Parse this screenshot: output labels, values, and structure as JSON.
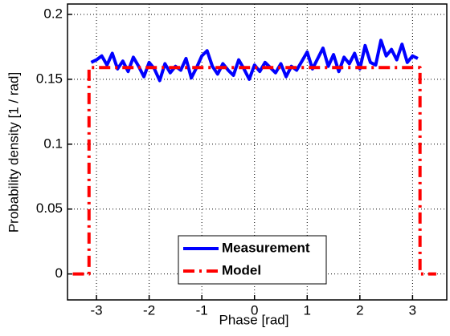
{
  "chart_data": {
    "type": "line",
    "xlabel": "Phase  [rad]",
    "ylabel": "Probability density  [1 / rad]",
    "xlim": [
      -3.55,
      3.65
    ],
    "ylim": [
      -0.02,
      0.208
    ],
    "xticks": [
      -3,
      -2,
      -1,
      0,
      1,
      2,
      3
    ],
    "yticks": [
      0,
      0.05,
      0.1,
      0.15,
      0.2
    ],
    "grid": true,
    "legend": "bottom",
    "series": [
      {
        "name": "Measurement",
        "color": "#0000ff",
        "linestyle": "solid",
        "x": [
          -3.1,
          -3.0,
          -2.9,
          -2.8,
          -2.7,
          -2.6,
          -2.5,
          -2.4,
          -2.3,
          -2.2,
          -2.1,
          -2.0,
          -1.9,
          -1.8,
          -1.7,
          -1.6,
          -1.5,
          -1.4,
          -1.3,
          -1.2,
          -1.1,
          -1.0,
          -0.9,
          -0.8,
          -0.7,
          -0.6,
          -0.5,
          -0.4,
          -0.3,
          -0.2,
          -0.1,
          0,
          0.1,
          0.2,
          0.3,
          0.4,
          0.5,
          0.6,
          0.7,
          0.8,
          0.9,
          1.0,
          1.1,
          1.2,
          1.3,
          1.4,
          1.5,
          1.6,
          1.7,
          1.8,
          1.9,
          2.0,
          2.1,
          2.2,
          2.3,
          2.4,
          2.5,
          2.6,
          2.7,
          2.8,
          2.9,
          3.0,
          3.1
        ],
        "values": [
          0.163,
          0.165,
          0.168,
          0.161,
          0.17,
          0.158,
          0.164,
          0.156,
          0.167,
          0.16,
          0.152,
          0.163,
          0.158,
          0.149,
          0.162,
          0.155,
          0.16,
          0.157,
          0.166,
          0.151,
          0.159,
          0.168,
          0.172,
          0.16,
          0.154,
          0.162,
          0.157,
          0.153,
          0.165,
          0.158,
          0.15,
          0.161,
          0.156,
          0.163,
          0.159,
          0.155,
          0.162,
          0.152,
          0.16,
          0.157,
          0.164,
          0.171,
          0.158,
          0.166,
          0.174,
          0.16,
          0.169,
          0.156,
          0.167,
          0.162,
          0.17,
          0.158,
          0.176,
          0.163,
          0.161,
          0.18,
          0.168,
          0.173,
          0.165,
          0.177,
          0.163,
          0.168,
          0.166
        ]
      },
      {
        "name": "Model",
        "color": "#ff0000",
        "linestyle": "dashdot",
        "x": [
          -3.45,
          -3.1416,
          -3.1416,
          3.1416,
          3.1416,
          3.45
        ],
        "values": [
          0,
          0,
          0.159,
          0.159,
          0,
          0
        ]
      }
    ]
  }
}
